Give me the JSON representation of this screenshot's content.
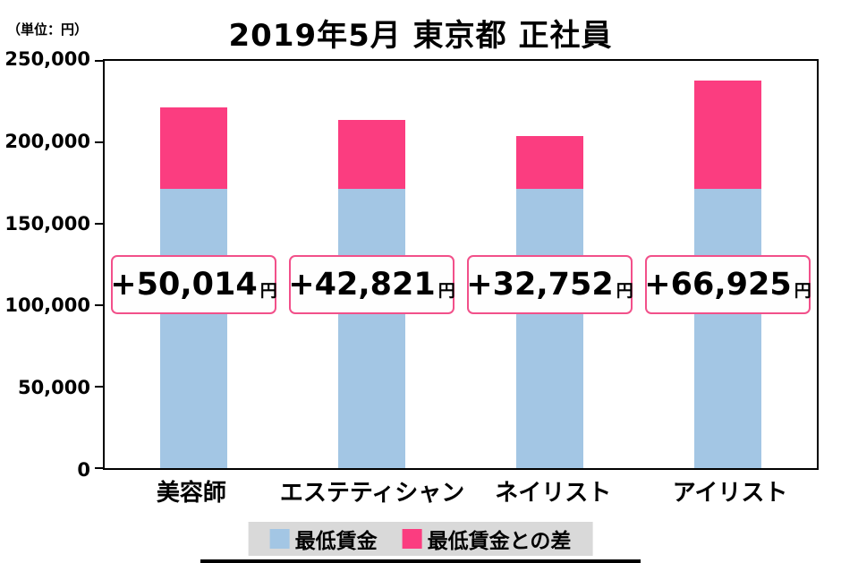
{
  "unit_label": "（単位：円）",
  "title": "2019年5月 東京都 正社員",
  "colors": {
    "min_wage": "#a3c6e4",
    "difference": "#fb3d80",
    "label_box_border": "#f2508a",
    "legend_background": "#d9d9d9"
  },
  "legend": {
    "items": [
      {
        "label": "最低賃金",
        "color": "#a3c6e4"
      },
      {
        "label": "最低賃金との差",
        "color": "#fb3d80"
      }
    ]
  },
  "chart_data": {
    "type": "bar",
    "stacked": true,
    "title": "2019年5月 東京都 正社員",
    "xlabel": "",
    "ylabel": "円",
    "ylim": [
      0,
      250000
    ],
    "yticks": [
      0,
      50000,
      100000,
      150000,
      200000,
      250000
    ],
    "grid": false,
    "legend_position": "bottom",
    "categories": [
      "美容師",
      "エステティシャン",
      "ネイリスト",
      "アイリスト"
    ],
    "series": [
      {
        "name": "最低賃金",
        "color": "#a3c6e4",
        "values": [
          171193,
          171193,
          171193,
          171193
        ]
      },
      {
        "name": "最低賃金との差",
        "color": "#fb3d80",
        "values": [
          50014,
          42821,
          32752,
          66925
        ]
      }
    ],
    "totals": [
      221207,
      214014,
      203945,
      238118
    ],
    "bar_labels": [
      "+50,014",
      "+42,821",
      "+32,752",
      "+66,925"
    ],
    "bar_label_suffix": "円"
  }
}
